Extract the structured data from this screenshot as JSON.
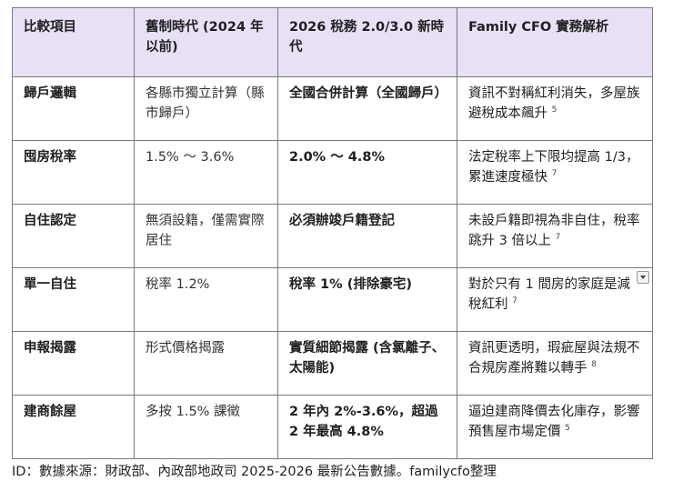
{
  "headers": [
    "比較項目",
    "舊制時代 (2024 年以前)",
    "2026 稅務 2.0/3.0 新時代",
    "Family CFO 實務解析"
  ],
  "rows": [
    {
      "item": "歸戶邏輯",
      "old": "各縣市獨立計算（縣市歸戶）",
      "new": "全國合併計算（全國歸戶）",
      "analysis": "資訊不對稱紅利消失，多屋族避稅成本飆升",
      "ref": "5"
    },
    {
      "item": "囤房稅率",
      "old": "1.5% ～ 3.6%",
      "new": "2.0% ～ 4.8%",
      "analysis": "法定稅率上下限均提高 1/3，累進速度極快",
      "ref": "7"
    },
    {
      "item": "自住認定",
      "old": "無須設籍，僅需實際居住",
      "new": "必須辦竣戶籍登記",
      "analysis": "未設戶籍即視為非自住，稅率跳升 3 倍以上",
      "ref": "7"
    },
    {
      "item": "單一自住",
      "old": "稅率 1.2%",
      "new": "稅率 1% (排除豪宅)",
      "analysis": "對於只有 1 間房的家庭是減稅紅利",
      "ref": "7"
    },
    {
      "item": "申報揭露",
      "old": "形式價格揭露",
      "new": "實質細節揭露 (含氯離子、太陽能)",
      "analysis": "資訊更透明，瑕疵屋與法規不合規房產將難以轉手",
      "ref": "8"
    },
    {
      "item": "建商餘屋",
      "old": "多按 1.5% 課徵",
      "new": "2 年內 2%-3.6%，超過 2 年最高 4.8%",
      "analysis": "逼迫建商降價去化庫存，影響預售屋市場定價",
      "ref": "5"
    }
  ],
  "caption": "ID：數據來源：財政部、內政部地政司 2025-2026 最新公告數據。familycfo整理"
}
